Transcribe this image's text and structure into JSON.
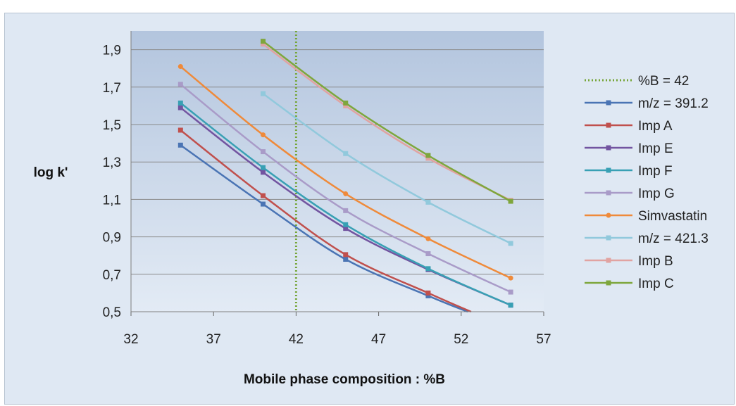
{
  "chart_data": {
    "type": "line",
    "title": "",
    "xlabel": "Mobile phase composition : %B",
    "ylabel": "log k'",
    "xlim": [
      32,
      57
    ],
    "ylim": [
      0.5,
      2.0
    ],
    "xticks": [
      "32",
      "37",
      "42",
      "47",
      "52",
      "57"
    ],
    "yticks": [
      "0,5",
      "0,7",
      "0,9",
      "1,1",
      "1,3",
      "1,5",
      "1,7",
      "1,9"
    ],
    "grid": true,
    "legend_position": "right",
    "reference_line": {
      "name": "%B = 42",
      "x": 42,
      "color": "#77a63a",
      "style": "dotted"
    },
    "series": [
      {
        "name": "m/z = 391.2",
        "color": "#4a74b4",
        "marker": "square",
        "x": [
          35,
          40,
          45,
          50,
          52.4
        ],
        "y": [
          1.39,
          1.075,
          0.78,
          0.585,
          0.5
        ]
      },
      {
        "name": "Imp A",
        "color": "#c0504d",
        "marker": "square",
        "x": [
          35,
          40,
          45,
          50,
          52.6
        ],
        "y": [
          1.47,
          1.12,
          0.805,
          0.6,
          0.5
        ]
      },
      {
        "name": "Imp E",
        "color": "#7254a0",
        "marker": "square",
        "x": [
          35,
          40,
          45,
          50,
          55
        ],
        "y": [
          1.59,
          1.245,
          0.945,
          0.725,
          0.535
        ]
      },
      {
        "name": "Imp F",
        "color": "#38a0b4",
        "marker": "square",
        "x": [
          35,
          40,
          45,
          50,
          55
        ],
        "y": [
          1.615,
          1.27,
          0.965,
          0.73,
          0.535
        ]
      },
      {
        "name": "Imp G",
        "color": "#a99bc8",
        "marker": "square",
        "x": [
          35,
          40,
          45,
          50,
          55
        ],
        "y": [
          1.715,
          1.355,
          1.04,
          0.81,
          0.605
        ]
      },
      {
        "name": "Simvastatin",
        "color": "#ef8a3a",
        "marker": "circle",
        "x": [
          35,
          40,
          45,
          50,
          55
        ],
        "y": [
          1.81,
          1.445,
          1.13,
          0.89,
          0.68
        ]
      },
      {
        "name": "m/z = 421.3",
        "color": "#91c9dc",
        "marker": "square",
        "x": [
          40,
          45,
          50,
          55
        ],
        "y": [
          1.665,
          1.345,
          1.085,
          0.865
        ]
      },
      {
        "name": "Imp B",
        "color": "#e1a3a1",
        "marker": "square",
        "x": [
          40,
          45,
          50,
          55
        ],
        "y": [
          1.93,
          1.6,
          1.32,
          1.095
        ]
      },
      {
        "name": "Imp C",
        "color": "#7ea63c",
        "marker": "square",
        "x": [
          40,
          45,
          50,
          55
        ],
        "y": [
          1.945,
          1.615,
          1.335,
          1.09
        ]
      }
    ]
  }
}
